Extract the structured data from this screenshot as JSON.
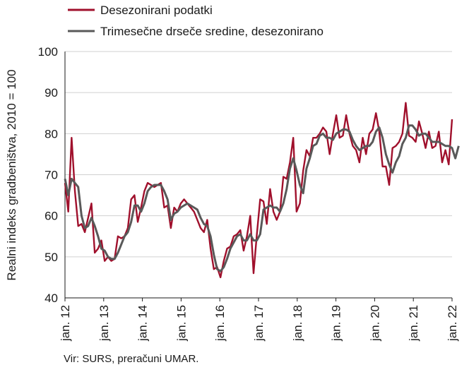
{
  "chart_data": {
    "type": "line",
    "ylabel": "Realni indeks gradbeništva, 2010 = 100",
    "ylim": [
      40,
      100
    ],
    "yticks": [
      40,
      50,
      60,
      70,
      80,
      90,
      100
    ],
    "xticks": [
      "jan. 12",
      "jan. 13",
      "jan. 14",
      "jan. 15",
      "jan. 16",
      "jan. 17",
      "jan. 18",
      "jan. 19",
      "jan. 20",
      "jan. 21",
      "jan. 22"
    ],
    "x_start": "2012-01",
    "x_end": "2022-01",
    "legend_position": "top-left",
    "grid": "horizontal",
    "series": [
      {
        "name": "Desezonirani podatki",
        "color": "#a0102c",
        "values": [
          68,
          61,
          79,
          66,
          57.5,
          58,
          56,
          59.5,
          63,
          51,
          52,
          54,
          49,
          50,
          49,
          49.5,
          55,
          54.5,
          55,
          57,
          64,
          65,
          58.5,
          62,
          66,
          68,
          67.5,
          67,
          67.5,
          68,
          62,
          62.5,
          57,
          62,
          61,
          63,
          64,
          63,
          62,
          61,
          59,
          57,
          56,
          59,
          52,
          47,
          47.5,
          45,
          49,
          52,
          52.5,
          55,
          55.5,
          56.5,
          51.5,
          55,
          60,
          46,
          55.5,
          64,
          63.5,
          58,
          66.5,
          61,
          59,
          61,
          69.5,
          69,
          73,
          79,
          61,
          63,
          71,
          76,
          74.5,
          79,
          79,
          80,
          81.5,
          80.5,
          75,
          80,
          84.5,
          79,
          79.5,
          84.5,
          80,
          77,
          76,
          73,
          79,
          75,
          80,
          81,
          85,
          80.5,
          72,
          72,
          67.5,
          76.5,
          77,
          78,
          80,
          87.5,
          79.5,
          79,
          78,
          83,
          80,
          76.5,
          80.5,
          76.5,
          77,
          80.5,
          73,
          76,
          72.5,
          83.5
        ]
      },
      {
        "name": "Trimesečne drseče sredine, desezonirano",
        "color": "#595959",
        "values": [
          69,
          65,
          69,
          68,
          67,
          60,
          57,
          57.5,
          59.5,
          57.5,
          55,
          52,
          51.5,
          50,
          49.5,
          49.5,
          51,
          53,
          55,
          56,
          58.5,
          62.5,
          62.5,
          61,
          63,
          66,
          67,
          67.5,
          67.5,
          67.5,
          66,
          64,
          59,
          60.5,
          61,
          62,
          62.5,
          63,
          62.5,
          62,
          61.5,
          59.5,
          58,
          57.5,
          55,
          50.5,
          47,
          46.5,
          47.5,
          49.5,
          52,
          53.5,
          55,
          55.5,
          54,
          54,
          55.5,
          54,
          54,
          55.5,
          61.5,
          62,
          62.5,
          62,
          62,
          61,
          63,
          66.5,
          71.5,
          74,
          71,
          67.5,
          65.5,
          71.5,
          74,
          77,
          77.5,
          79.5,
          80,
          79,
          79,
          78.5,
          80,
          80.5,
          81,
          81,
          80.5,
          78.5,
          77,
          76,
          76.5,
          77,
          77,
          78,
          80.5,
          81.5,
          79,
          75,
          72.5,
          70.5,
          73,
          74.5,
          77.5,
          79,
          82,
          82,
          81,
          79.5,
          80,
          80,
          79,
          78,
          78,
          78,
          77.5,
          77,
          77,
          76.5,
          74,
          77
        ]
      }
    ],
    "source": "Vir: SURS, preračuni UMAR."
  }
}
